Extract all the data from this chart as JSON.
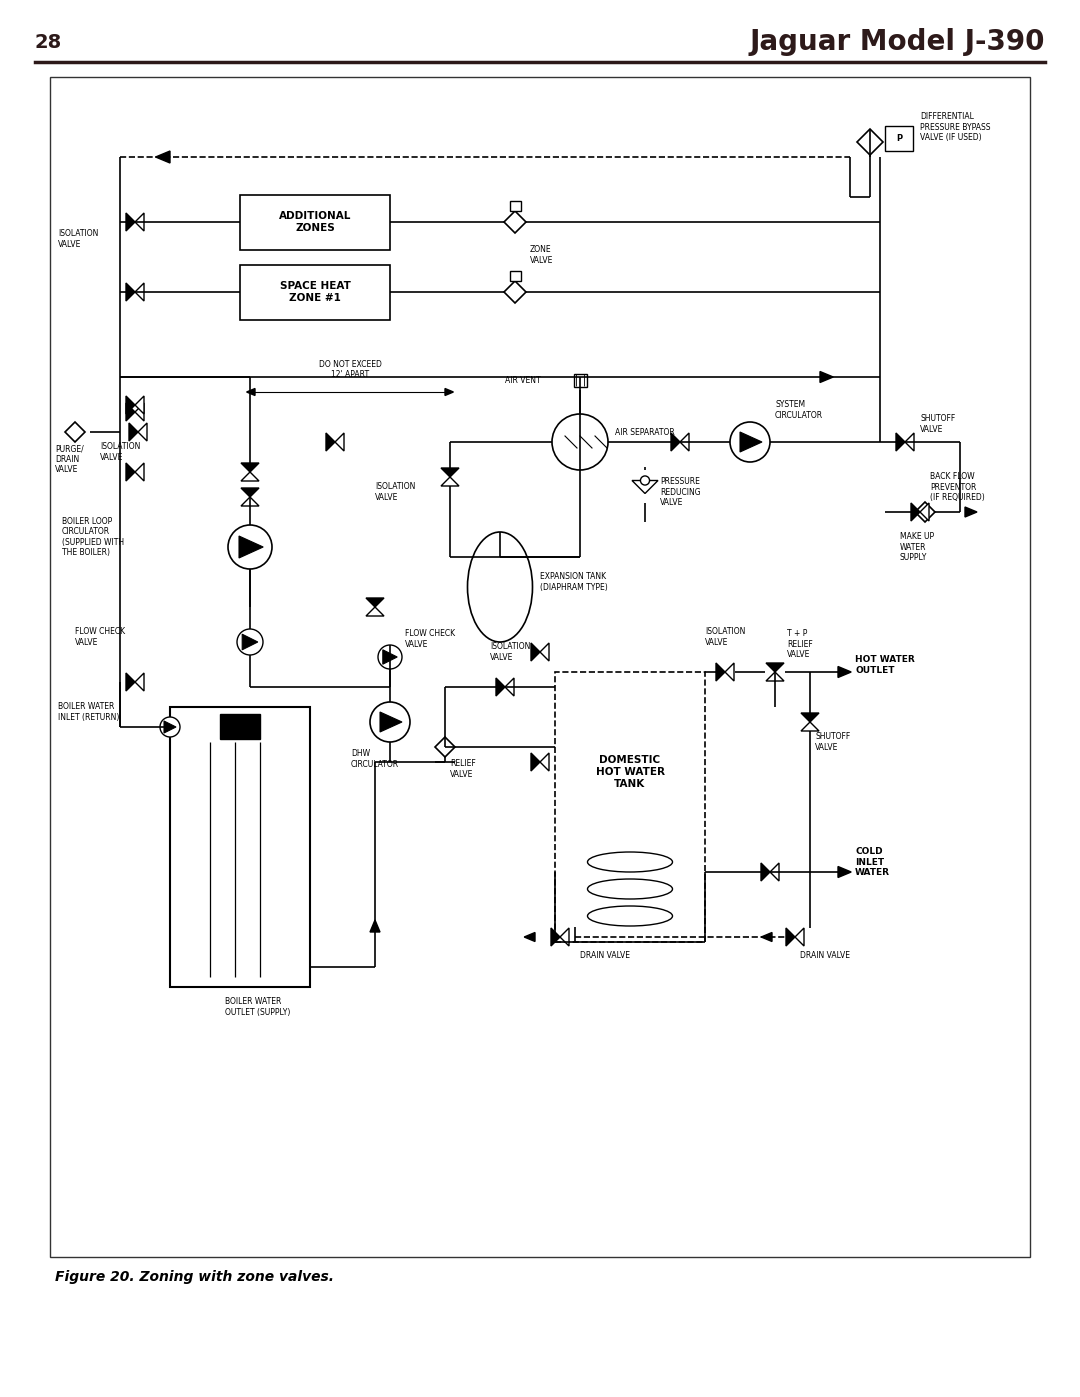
{
  "page_number": "28",
  "title": "Jaguar Model J-390",
  "title_color": "#2d1a1a",
  "title_fontsize": 20,
  "header_line_color": "#2d1a1a",
  "bg_color": "#ffffff",
  "diagram_border": "#333333",
  "caption": "Figure 20. Zoning with zone valves.",
  "caption_fontsize": 10,
  "line_color": "#000000",
  "text_color": "#000000",
  "label_fontsize": 6.5,
  "small_fontsize": 5.5
}
